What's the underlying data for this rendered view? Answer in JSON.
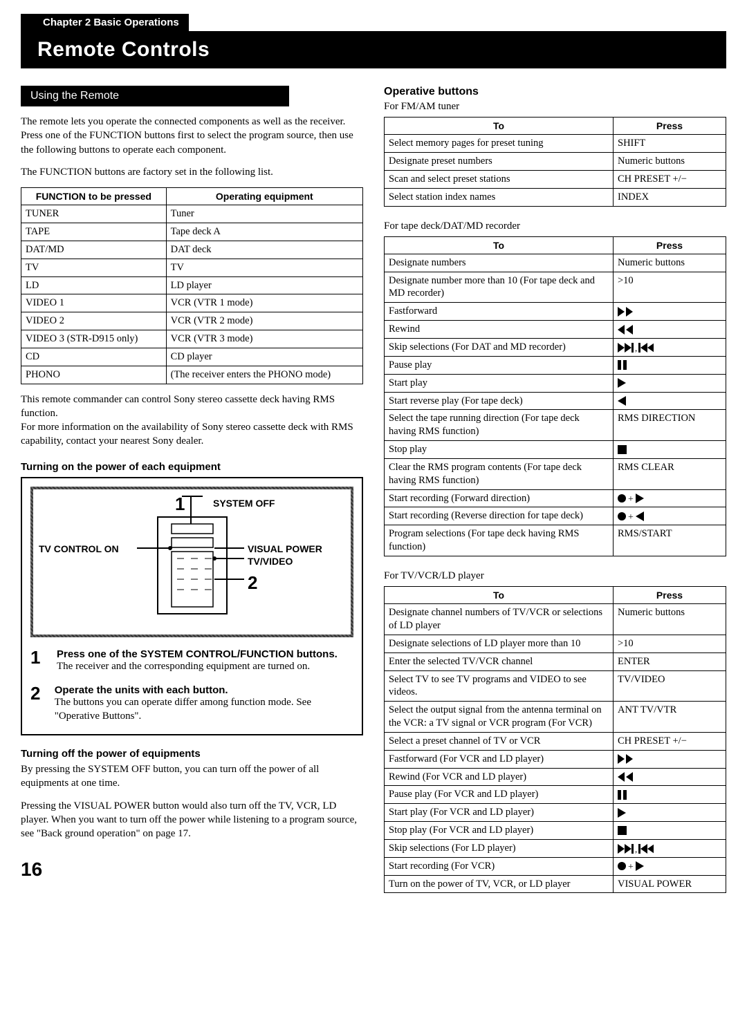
{
  "chapter": "Chapter 2 Basic Operations",
  "title": "Remote Controls",
  "page_number": "16",
  "left": {
    "using_remote_heading": "Using the Remote",
    "intro1": "The remote lets you operate the connected components as well as the receiver. Press one of the FUNCTION buttons first to select the program source, then use the following buttons to operate each component.",
    "intro2": "The FUNCTION buttons are factory set in the following list.",
    "func_table": {
      "headers": [
        "FUNCTION to be pressed",
        "Operating equipment"
      ],
      "rows": [
        [
          "TUNER",
          "Tuner"
        ],
        [
          "TAPE",
          "Tape deck A"
        ],
        [
          "DAT/MD",
          "DAT deck"
        ],
        [
          "TV",
          "TV"
        ],
        [
          "LD",
          "LD player"
        ],
        [
          "VIDEO 1",
          "VCR (VTR 1 mode)"
        ],
        [
          "VIDEO 2",
          "VCR (VTR 2 mode)"
        ],
        [
          "VIDEO 3 (STR-D915 only)",
          "VCR (VTR 3 mode)"
        ],
        [
          "CD",
          "CD player"
        ],
        [
          "PHONO",
          "(The receiver enters the PHONO mode)"
        ]
      ]
    },
    "after_table": "This remote commander can control Sony stereo cassette deck having RMS function.\nFor more information on the availability of Sony stereo cassette deck with RMS capability, contact your nearest Sony dealer.",
    "turn_on_heading": "Turning on the power of each equipment",
    "diagram": {
      "system_off": "SYSTEM OFF",
      "visual_power": "VISUAL POWER",
      "tv_video": "TV/VIDEO",
      "tv_control_on": "TV CONTROL ON",
      "n1": "1",
      "n2": "2"
    },
    "step1_title": "Press one of the SYSTEM CONTROL/FUNCTION buttons.",
    "step1_text": "The receiver and the corresponding equipment are turned on.",
    "step2_title": "Operate the units with each button.",
    "step2_text": "The buttons you can operate differ among function mode. See \"Operative Buttons\".",
    "turn_off_heading": "Turning off the power of equipments",
    "turn_off_p1": "By pressing the SYSTEM OFF button, you can turn off the power of all equipments at one time.",
    "turn_off_p2": "Pressing the VISUAL POWER button would also turn off the TV, VCR, LD player. When you want to turn off the power while listening to a program source, see \"Back ground operation\" on page 17."
  },
  "right": {
    "operative_heading": "Operative buttons",
    "fm_am_sub": "For FM/AM tuner",
    "fm_table": {
      "headers": [
        "To",
        "Press"
      ],
      "rows": [
        [
          "Select memory pages for preset tuning",
          "SHIFT"
        ],
        [
          "Designate preset numbers",
          "Numeric buttons"
        ],
        [
          "Scan and select preset stations",
          "CH PRESET +/−"
        ],
        [
          "Select station index names",
          "INDEX"
        ]
      ]
    },
    "tape_sub": "For tape deck/DAT/MD recorder",
    "tape_table": {
      "headers": [
        "To",
        "Press"
      ],
      "rows": [
        [
          "Designate numbers",
          "Numeric buttons"
        ],
        [
          "Designate number more than 10 (For tape deck and MD recorder)",
          ">10"
        ],
        [
          "Fastforward",
          "icon:ff"
        ],
        [
          "Rewind",
          "icon:rew"
        ],
        [
          "Skip selections (For DAT and MD recorder)",
          "icon:skip"
        ],
        [
          "Pause play",
          "icon:pause"
        ],
        [
          "Start play",
          "icon:play"
        ],
        [
          "Start reverse play (For tape deck)",
          "icon:revplay"
        ],
        [
          "Select the tape running direction (For tape deck having RMS function)",
          "RMS DIRECTION"
        ],
        [
          "Stop play",
          "icon:stop"
        ],
        [
          "Clear the RMS program contents (For tape deck having RMS function)",
          "RMS CLEAR"
        ],
        [
          "Start recording (Forward direction)",
          "icon:recfwd"
        ],
        [
          "Start recording (Reverse direction for tape deck)",
          "icon:recrev"
        ],
        [
          "Program selections (For tape deck having RMS function)",
          "RMS/START"
        ]
      ]
    },
    "tv_sub": "For TV/VCR/LD player",
    "tv_table": {
      "headers": [
        "To",
        "Press"
      ],
      "rows": [
        [
          "Designate channel numbers of TV/VCR or selections of LD player",
          "Numeric buttons"
        ],
        [
          "Designate selections of LD player more than 10",
          ">10"
        ],
        [
          "Enter the selected TV/VCR channel",
          "ENTER"
        ],
        [
          "Select TV to see TV programs and VIDEO to see videos.",
          "TV/VIDEO"
        ],
        [
          "Select the output signal from the antenna terminal on the VCR: a TV signal or VCR program (For VCR)",
          "ANT TV/VTR"
        ],
        [
          "Select a preset channel of TV or VCR",
          "CH PRESET +/−"
        ],
        [
          "Fastforward (For VCR and LD player)",
          "icon:ff"
        ],
        [
          "Rewind (For VCR and LD player)",
          "icon:rew"
        ],
        [
          "Pause play (For VCR and LD player)",
          "icon:pause"
        ],
        [
          "Start play (For VCR and LD player)",
          "icon:play"
        ],
        [
          "Stop play (For VCR and LD player)",
          "icon:stop"
        ],
        [
          "Skip selections  (For LD player)",
          "icon:skip"
        ],
        [
          "Start recording (For VCR)",
          "icon:recfwd"
        ],
        [
          "Turn on the power of TV, VCR, or LD player",
          "VISUAL POWER"
        ]
      ]
    }
  },
  "colors": {
    "black": "#000000",
    "white": "#ffffff"
  }
}
